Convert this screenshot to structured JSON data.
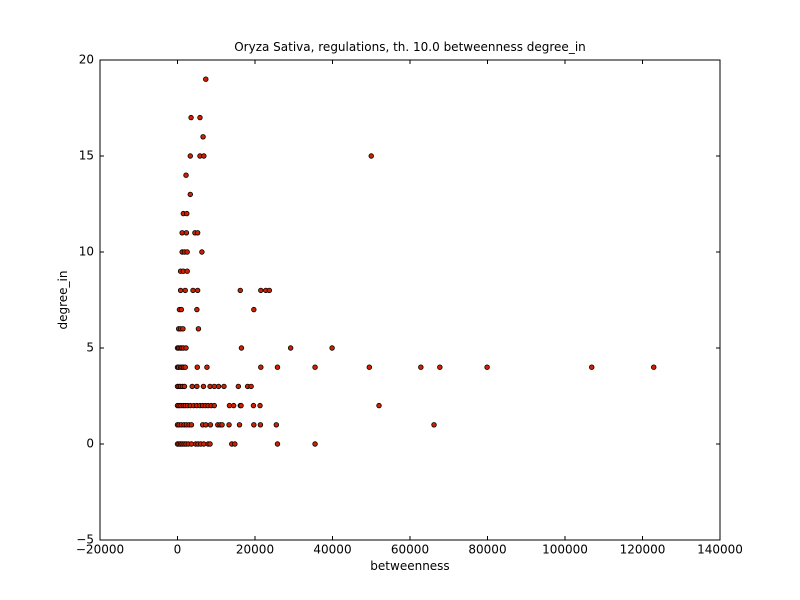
{
  "chart_data": {
    "type": "scatter",
    "title": "Oryza Sativa, regulations, th. 10.0 betweenness degree_in",
    "xlabel": "betweenness",
    "ylabel": "degree_in",
    "xlim": [
      -20000,
      140000
    ],
    "ylim": [
      -5,
      20
    ],
    "xticks": [
      -20000,
      0,
      20000,
      40000,
      60000,
      80000,
      100000,
      120000,
      140000
    ],
    "xtick_labels": [
      "−20000",
      "0",
      "20000",
      "40000",
      "60000",
      "80000",
      "100000",
      "120000",
      "140000"
    ],
    "yticks": [
      -5,
      0,
      5,
      10,
      15,
      20
    ],
    "ytick_labels": [
      "−5",
      "0",
      "5",
      "10",
      "15",
      "20"
    ],
    "grid": false,
    "marker_color": "#cc2200",
    "marker_edge_color": "#000000",
    "points": [
      [
        7300,
        19
      ],
      [
        3500,
        17
      ],
      [
        5800,
        17
      ],
      [
        6600,
        16
      ],
      [
        3300,
        15
      ],
      [
        5800,
        15
      ],
      [
        6800,
        15
      ],
      [
        50000,
        15
      ],
      [
        2200,
        14
      ],
      [
        3300,
        13
      ],
      [
        1500,
        12
      ],
      [
        2400,
        12
      ],
      [
        1200,
        11
      ],
      [
        2300,
        11
      ],
      [
        4500,
        11
      ],
      [
        5200,
        11
      ],
      [
        1200,
        10
      ],
      [
        1800,
        10
      ],
      [
        2500,
        10
      ],
      [
        6300,
        10
      ],
      [
        800,
        9
      ],
      [
        1500,
        9
      ],
      [
        2500,
        9
      ],
      [
        800,
        8
      ],
      [
        2000,
        8
      ],
      [
        4000,
        8
      ],
      [
        5200,
        8
      ],
      [
        16200,
        8
      ],
      [
        21500,
        8
      ],
      [
        22800,
        8
      ],
      [
        23700,
        8
      ],
      [
        500,
        7
      ],
      [
        1000,
        7
      ],
      [
        5000,
        7
      ],
      [
        19700,
        7
      ],
      [
        300,
        6
      ],
      [
        800,
        6
      ],
      [
        1400,
        6
      ],
      [
        5400,
        6
      ],
      [
        0,
        5
      ],
      [
        300,
        5
      ],
      [
        700,
        5
      ],
      [
        1100,
        5
      ],
      [
        1500,
        5
      ],
      [
        2200,
        5
      ],
      [
        16500,
        5
      ],
      [
        29200,
        5
      ],
      [
        39900,
        5
      ],
      [
        0,
        4
      ],
      [
        300,
        4
      ],
      [
        800,
        4
      ],
      [
        1200,
        4
      ],
      [
        1600,
        4
      ],
      [
        2000,
        4
      ],
      [
        5100,
        4
      ],
      [
        7600,
        4
      ],
      [
        21500,
        4
      ],
      [
        25800,
        4
      ],
      [
        35500,
        4
      ],
      [
        49500,
        4
      ],
      [
        62800,
        4
      ],
      [
        67700,
        4
      ],
      [
        79900,
        4
      ],
      [
        106900,
        4
      ],
      [
        122900,
        4
      ],
      [
        0,
        3
      ],
      [
        400,
        3
      ],
      [
        800,
        3
      ],
      [
        1300,
        3
      ],
      [
        1800,
        3
      ],
      [
        3800,
        3
      ],
      [
        5000,
        3
      ],
      [
        6700,
        3
      ],
      [
        8400,
        3
      ],
      [
        9500,
        3
      ],
      [
        10600,
        3
      ],
      [
        12000,
        3
      ],
      [
        15700,
        3
      ],
      [
        18100,
        3
      ],
      [
        19000,
        3
      ],
      [
        0,
        2
      ],
      [
        400,
        2
      ],
      [
        900,
        2
      ],
      [
        1500,
        2
      ],
      [
        2000,
        2
      ],
      [
        2600,
        2
      ],
      [
        3300,
        2
      ],
      [
        4200,
        2
      ],
      [
        5000,
        2
      ],
      [
        5800,
        2
      ],
      [
        6500,
        2
      ],
      [
        7200,
        2
      ],
      [
        7900,
        2
      ],
      [
        8700,
        2
      ],
      [
        9500,
        2
      ],
      [
        13400,
        2
      ],
      [
        14500,
        2
      ],
      [
        16200,
        2
      ],
      [
        16400,
        2
      ],
      [
        19600,
        2
      ],
      [
        21300,
        2
      ],
      [
        52000,
        2
      ],
      [
        0,
        1
      ],
      [
        400,
        1
      ],
      [
        1000,
        1
      ],
      [
        1700,
        1
      ],
      [
        2300,
        1
      ],
      [
        3000,
        1
      ],
      [
        3600,
        1
      ],
      [
        6500,
        1
      ],
      [
        7300,
        1
      ],
      [
        8500,
        1
      ],
      [
        10400,
        1
      ],
      [
        11000,
        1
      ],
      [
        11500,
        1
      ],
      [
        13300,
        1
      ],
      [
        16000,
        1
      ],
      [
        19700,
        1
      ],
      [
        21400,
        1
      ],
      [
        25500,
        1
      ],
      [
        66200,
        1
      ],
      [
        0,
        0
      ],
      [
        400,
        0
      ],
      [
        800,
        0
      ],
      [
        1200,
        0
      ],
      [
        1700,
        0
      ],
      [
        2200,
        0
      ],
      [
        2800,
        0
      ],
      [
        3600,
        0
      ],
      [
        4700,
        0
      ],
      [
        5300,
        0
      ],
      [
        6000,
        0
      ],
      [
        6800,
        0
      ],
      [
        7900,
        0
      ],
      [
        8400,
        0
      ],
      [
        14000,
        0
      ],
      [
        14800,
        0
      ],
      [
        25800,
        0
      ],
      [
        35500,
        0
      ]
    ]
  }
}
